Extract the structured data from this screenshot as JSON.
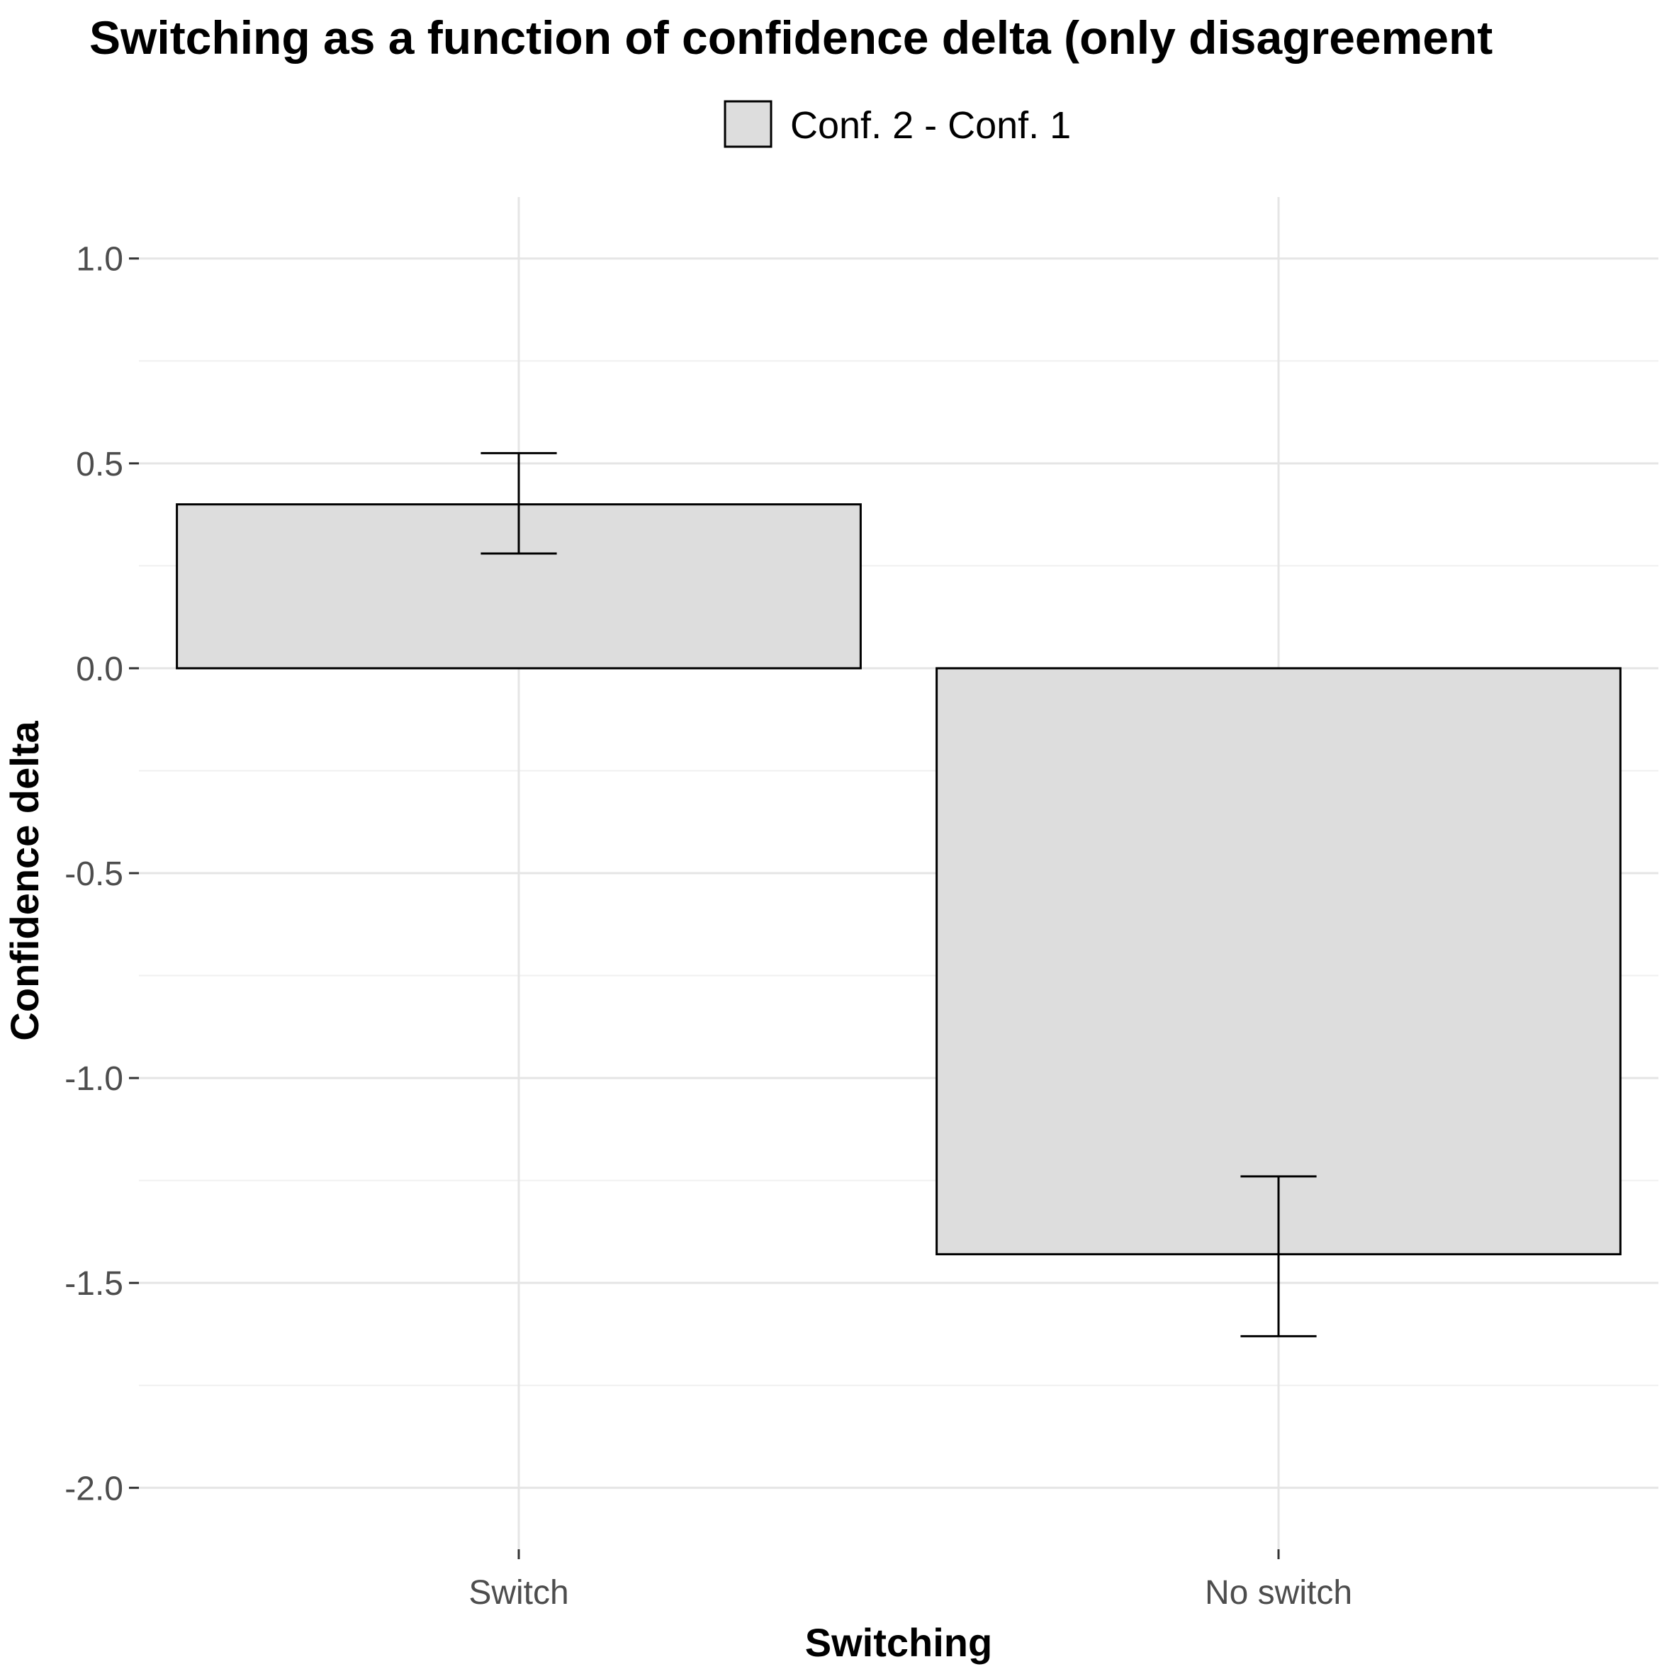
{
  "chart_data": {
    "type": "bar",
    "title": "Switching as a function of confidence delta (only disagreement",
    "xlabel": "Switching",
    "ylabel": "Confidence delta",
    "categories": [
      "Switch",
      "No switch"
    ],
    "series": [
      {
        "name": "Conf. 2 - Conf. 1",
        "values": [
          0.4,
          -1.43
        ],
        "error_low": [
          0.28,
          -1.63
        ],
        "error_high": [
          0.525,
          -1.24
        ]
      }
    ],
    "ylim": [
      -2.15,
      1.15
    ],
    "yticks": [
      1.0,
      0.5,
      0.0,
      -0.5,
      -1.0,
      -1.5,
      -2.0
    ],
    "ytick_labels": [
      "1.0",
      "0.5",
      "0.0",
      "-0.5",
      "-1.0",
      "-1.5",
      "-2.0"
    ],
    "grid": true,
    "legend_position": "top",
    "colors": {
      "bar_fill": "#dddddd",
      "bar_stroke": "#000000",
      "grid_major": "#e5e5e5",
      "grid_minor": "#f0f0f0",
      "tick_text": "#4d4d4d"
    }
  }
}
